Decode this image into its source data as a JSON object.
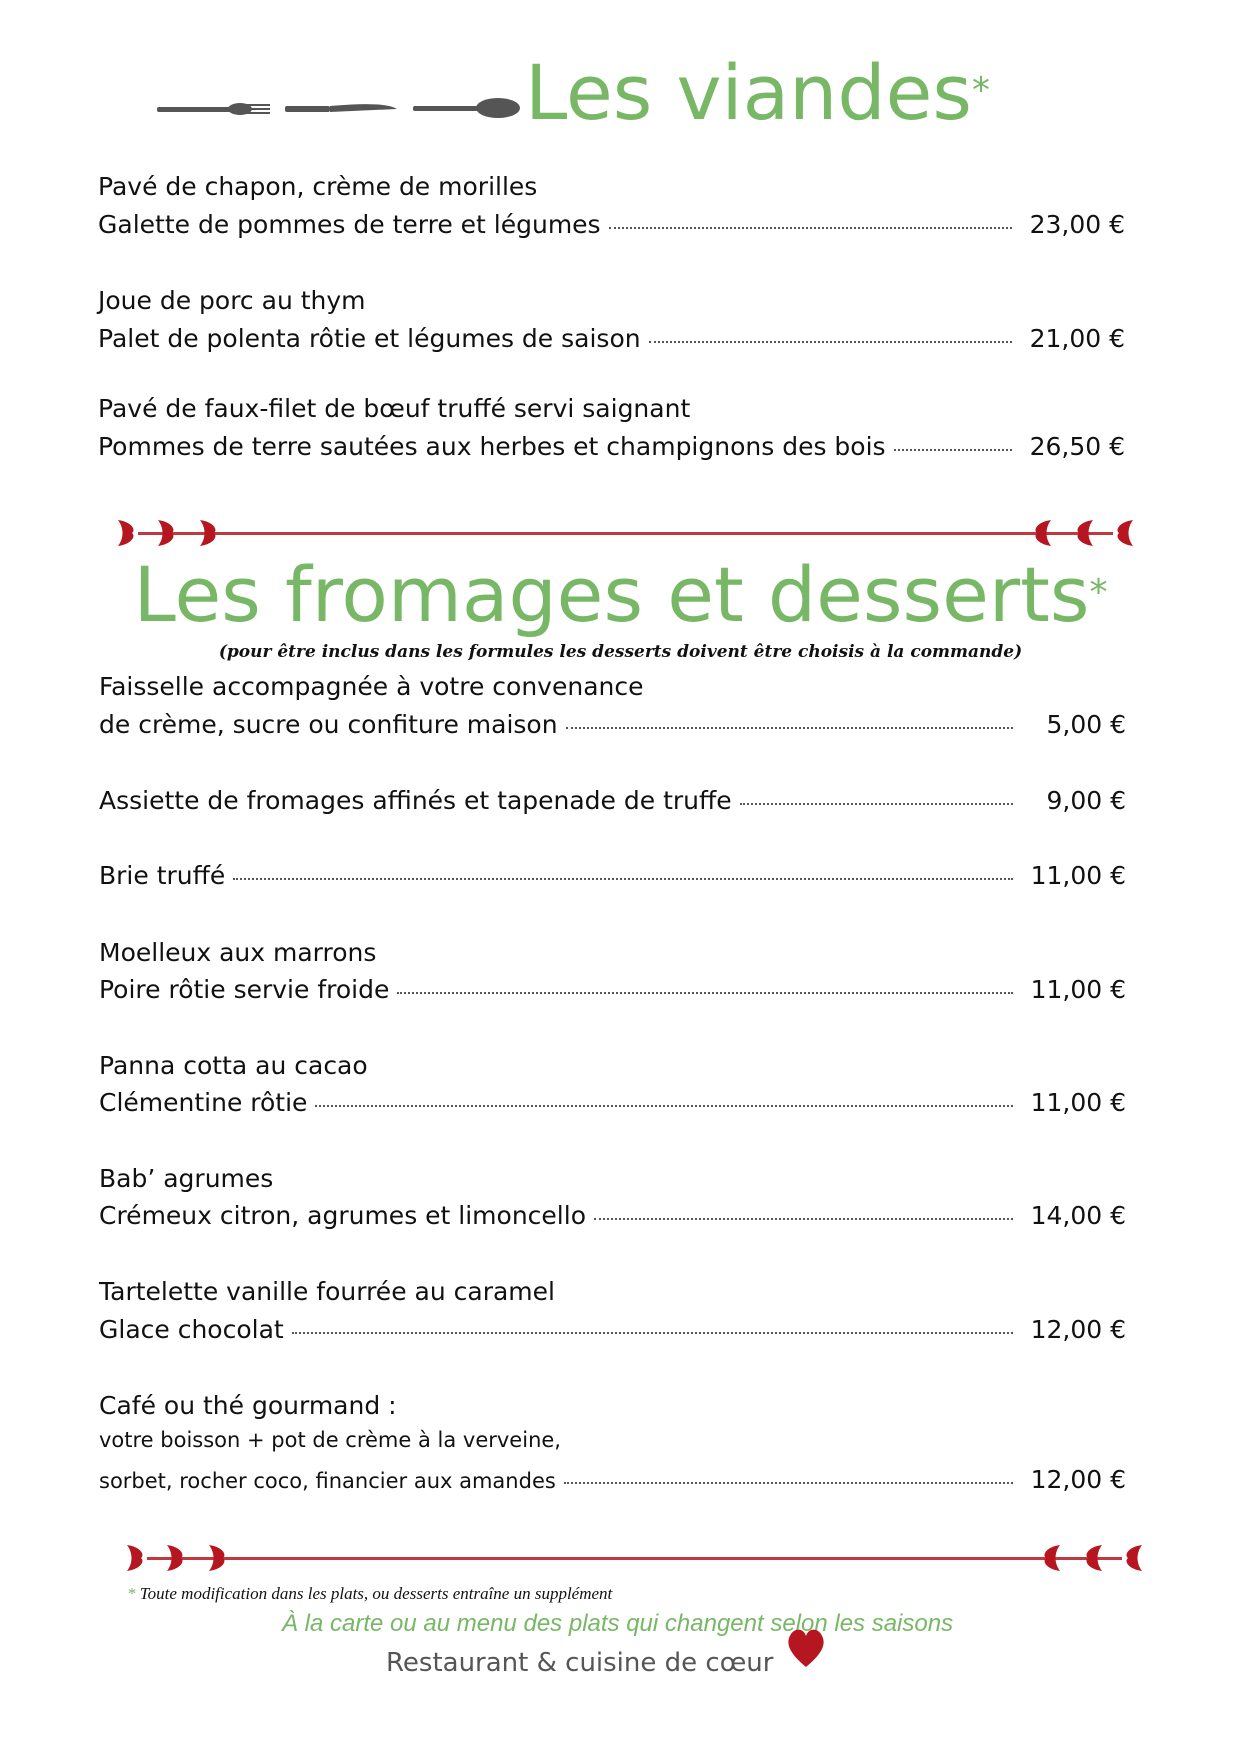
{
  "colors": {
    "accent_green": "#77b766",
    "heart_red": "#b5161f",
    "text": "#111111",
    "brand_gray": "#555555"
  },
  "meats": {
    "title": "Les viandes",
    "title_mark": "*",
    "items": [
      {
        "lines": [
          "Pavé de chapon, crème de morilles",
          "Galette de pommes de terre et légumes"
        ],
        "price": "23,00 €"
      },
      {
        "lines": [
          "Joue de porc au thym",
          "Palet de polenta rôtie et légumes de saison"
        ],
        "price": "21,00 €"
      },
      {
        "lines": [
          "Pavé de faux-filet de bœuf truffé servi saignant",
          "Pommes de terre sautées aux herbes et champignons des bois"
        ],
        "price": "26,50 €"
      }
    ]
  },
  "desserts": {
    "title": "Les fromages et desserts",
    "title_mark": "*",
    "subtitle": "(pour être inclus dans les formules les desserts doivent être choisis à la commande)",
    "items": [
      {
        "lines": [
          "Faisselle accompagnée à votre convenance",
          "de crème, sucre ou confiture maison"
        ],
        "price": "5,00 €"
      },
      {
        "lines": [
          "Assiette de fromages affinés et tapenade de truffe"
        ],
        "price": "9,00 €"
      },
      {
        "lines": [
          "Brie truffé"
        ],
        "price": "11,00 €"
      },
      {
        "lines": [
          "Moelleux aux marrons",
          "Poire rôtie servie froide"
        ],
        "price": "11,00 €"
      },
      {
        "lines": [
          "Panna cotta au cacao",
          "Clémentine rôtie"
        ],
        "price": "11,00 €"
      },
      {
        "lines": [
          "Bab’ agrumes",
          "Crémeux citron, agrumes et limoncello"
        ],
        "price": "14,00 €"
      },
      {
        "lines": [
          "Tartelette vanille fourrée au caramel",
          "Glace chocolat"
        ],
        "price": "12,00 €"
      },
      {
        "lines": [
          "Café ou thé gourmand :",
          "votre boisson + pot de crème à la verveine,",
          "sorbet, rocher coco, financier aux amandes"
        ],
        "price": "12,00 €"
      }
    ]
  },
  "footer": {
    "note_mark": "*",
    "note": "Toute modification dans les plats, ou desserts entraîne un supplément",
    "tagline": "À la carte ou au menu des plats qui changent selon les saisons",
    "brand": "Restaurant & cuisine de cœur"
  },
  "icons": [
    "fork-icon",
    "knife-icon",
    "spoon-icon",
    "heart-divider-icon",
    "heart-icon"
  ]
}
